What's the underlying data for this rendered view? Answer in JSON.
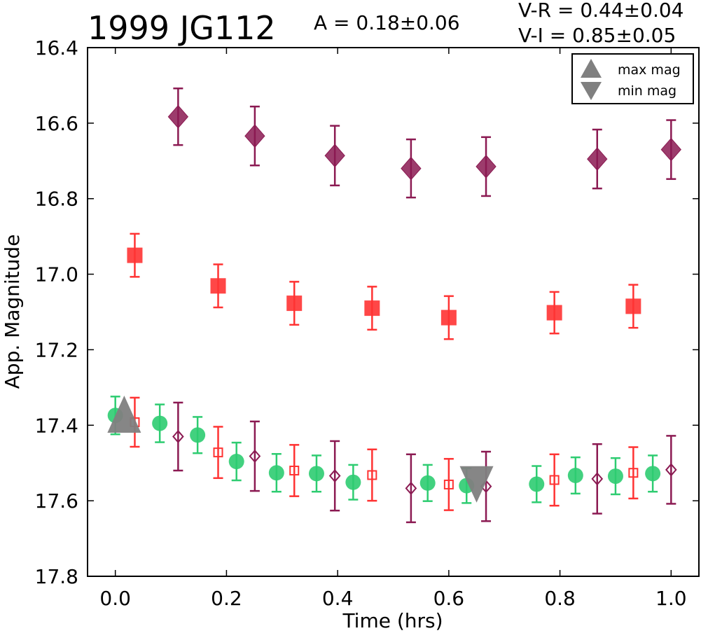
{
  "chart_data": {
    "type": "scatter",
    "title": "1999 JG112",
    "amplitude_text": "A  = 0.18±0.06",
    "color_text": [
      "V-R = 0.44±0.04",
      "V-I  = 0.85±0.05"
    ],
    "xlabel": "Time (hrs)",
    "ylabel": "App. Magnitude",
    "xlim": [
      -0.05,
      1.05
    ],
    "ylim": [
      17.8,
      16.4
    ],
    "y_inverted": true,
    "xticks": [
      "0.0",
      "0.2",
      "0.4",
      "0.6",
      "0.8",
      "1.0"
    ],
    "xtick_values": [
      0.0,
      0.2,
      0.4,
      0.6,
      0.8,
      1.0
    ],
    "yticks": [
      "16.4",
      "16.6",
      "16.8",
      "17.0",
      "17.2",
      "17.4",
      "17.6",
      "17.8"
    ],
    "ytick_values": [
      16.4,
      16.6,
      16.8,
      17.0,
      17.2,
      17.4,
      17.6,
      17.8
    ],
    "grid": false,
    "legend_position": "top-right",
    "legend": [
      {
        "label": "max mag",
        "marker": "triangle-up",
        "color": "#808080"
      },
      {
        "label": "min mag",
        "marker": "triangle-down",
        "color": "#808080"
      }
    ],
    "series": [
      {
        "marker": "diamond-filled",
        "color": "#8b1a52",
        "points": [
          {
            "x": 0.113,
            "y": 16.583,
            "err": 0.075
          },
          {
            "x": 0.251,
            "y": 16.634,
            "err": 0.078
          },
          {
            "x": 0.395,
            "y": 16.686,
            "err": 0.079
          },
          {
            "x": 0.532,
            "y": 16.72,
            "err": 0.077
          },
          {
            "x": 0.667,
            "y": 16.715,
            "err": 0.078
          },
          {
            "x": 0.867,
            "y": 16.695,
            "err": 0.078
          },
          {
            "x": 1.0,
            "y": 16.67,
            "err": 0.078
          }
        ]
      },
      {
        "marker": "square-filled",
        "color": "#ff3333",
        "points": [
          {
            "x": 0.035,
            "y": 16.95,
            "err": 0.057
          },
          {
            "x": 0.185,
            "y": 17.031,
            "err": 0.057
          },
          {
            "x": 0.322,
            "y": 17.077,
            "err": 0.057
          },
          {
            "x": 0.462,
            "y": 17.09,
            "err": 0.057
          },
          {
            "x": 0.6,
            "y": 17.115,
            "err": 0.057
          },
          {
            "x": 0.79,
            "y": 17.102,
            "err": 0.055
          },
          {
            "x": 0.932,
            "y": 17.085,
            "err": 0.057
          }
        ]
      },
      {
        "marker": "circle-filled",
        "color": "#2ecc71",
        "points": [
          {
            "x": 0.0,
            "y": 17.374,
            "err": 0.05
          },
          {
            "x": 0.08,
            "y": 17.395,
            "err": 0.05
          },
          {
            "x": 0.148,
            "y": 17.426,
            "err": 0.048
          },
          {
            "x": 0.218,
            "y": 17.496,
            "err": 0.05
          },
          {
            "x": 0.29,
            "y": 17.526,
            "err": 0.05
          },
          {
            "x": 0.362,
            "y": 17.528,
            "err": 0.048
          },
          {
            "x": 0.428,
            "y": 17.551,
            "err": 0.046
          },
          {
            "x": 0.562,
            "y": 17.553,
            "err": 0.048
          },
          {
            "x": 0.632,
            "y": 17.56,
            "err": 0.046
          },
          {
            "x": 0.758,
            "y": 17.556,
            "err": 0.048
          },
          {
            "x": 0.828,
            "y": 17.533,
            "err": 0.048
          },
          {
            "x": 0.9,
            "y": 17.535,
            "err": 0.048
          },
          {
            "x": 0.967,
            "y": 17.528,
            "err": 0.048
          }
        ]
      },
      {
        "marker": "square-open",
        "color": "#ff3333",
        "points": [
          {
            "x": 0.035,
            "y": 17.392,
            "err": 0.065
          },
          {
            "x": 0.185,
            "y": 17.472,
            "err": 0.068
          },
          {
            "x": 0.322,
            "y": 17.52,
            "err": 0.068
          },
          {
            "x": 0.462,
            "y": 17.532,
            "err": 0.068
          },
          {
            "x": 0.6,
            "y": 17.557,
            "err": 0.068
          },
          {
            "x": 0.79,
            "y": 17.545,
            "err": 0.068
          },
          {
            "x": 0.932,
            "y": 17.526,
            "err": 0.068
          }
        ]
      },
      {
        "marker": "diamond-open",
        "color": "#8b1a52",
        "points": [
          {
            "x": 0.113,
            "y": 17.43,
            "err": 0.09
          },
          {
            "x": 0.251,
            "y": 17.482,
            "err": 0.092
          },
          {
            "x": 0.395,
            "y": 17.534,
            "err": 0.092
          },
          {
            "x": 0.532,
            "y": 17.567,
            "err": 0.09
          },
          {
            "x": 0.667,
            "y": 17.562,
            "err": 0.092
          },
          {
            "x": 0.867,
            "y": 17.542,
            "err": 0.092
          },
          {
            "x": 1.0,
            "y": 17.518,
            "err": 0.09
          }
        ]
      }
    ],
    "extrema_markers": [
      {
        "type": "max",
        "marker": "triangle-up",
        "color": "#808080",
        "x": 0.016,
        "y": 17.392
      },
      {
        "type": "min",
        "marker": "triangle-down",
        "color": "#808080",
        "x": 0.65,
        "y": 17.553
      }
    ]
  }
}
